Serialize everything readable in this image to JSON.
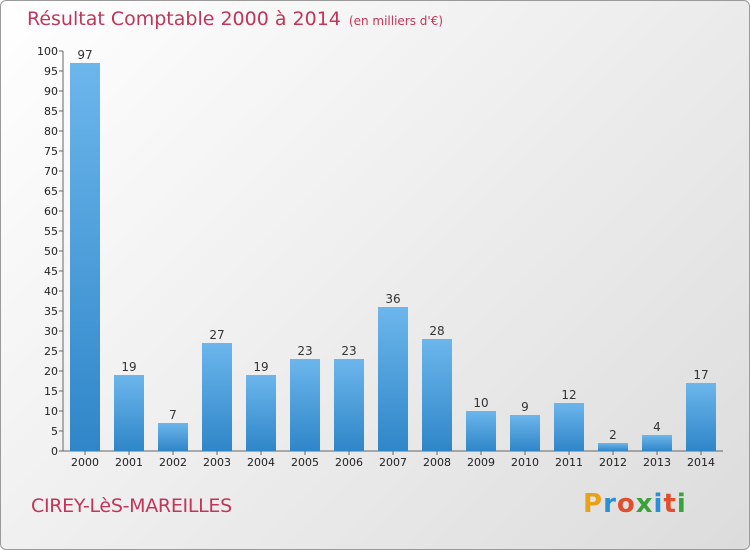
{
  "title": "Résultat Comptable 2000 à 2014",
  "subtitle": "(en milliers d'€)",
  "commune": "CIREY-LèS-MAREILLES",
  "logo": {
    "letters": [
      "P",
      "r",
      "o",
      "x",
      "i",
      "t",
      "i"
    ],
    "colors": [
      "#e8a21a",
      "#2a8fd6",
      "#e04e2e",
      "#3aa23a",
      "#2a8fd6",
      "#e04e2e",
      "#3aa23a"
    ]
  },
  "colors": {
    "accent": "#c0365a",
    "bar_top": "#6cb6ec",
    "bar_bottom": "#2f86c8"
  },
  "chart_data": {
    "type": "bar",
    "title": "Résultat Comptable 2000 à 2014",
    "subtitle": "(en milliers d'€)",
    "categories": [
      "2000",
      "2001",
      "2002",
      "2003",
      "2004",
      "2005",
      "2006",
      "2007",
      "2008",
      "2009",
      "2010",
      "2011",
      "2012",
      "2013",
      "2014"
    ],
    "values": [
      97,
      19,
      7,
      27,
      19,
      23,
      23,
      36,
      28,
      10,
      9,
      12,
      2,
      4,
      17
    ],
    "ylim": [
      0,
      100
    ],
    "yticks": [
      0,
      5,
      10,
      15,
      20,
      25,
      30,
      35,
      40,
      45,
      50,
      55,
      60,
      65,
      70,
      75,
      80,
      85,
      90,
      95,
      100
    ],
    "grid": false,
    "legend": "none"
  }
}
